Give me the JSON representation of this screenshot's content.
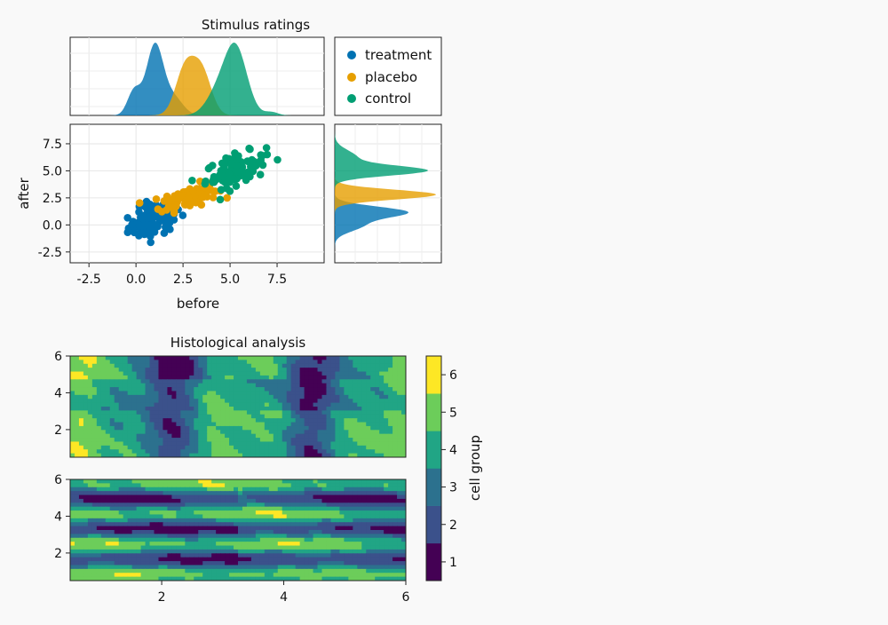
{
  "colors": {
    "treatment": "#0072b2",
    "placebo": "#e69f00",
    "control": "#009e73",
    "background": "#f9f9f9"
  },
  "chart_data": [
    {
      "id": "stimulus",
      "type": "scatter",
      "title": "Stimulus ratings",
      "xlabel": "before",
      "ylabel": "after",
      "xlim": [
        -3.5,
        10.0
      ],
      "ylim": [
        -3.5,
        9.3
      ],
      "xticks": [
        -2.5,
        0.0,
        2.5,
        5.0,
        7.5
      ],
      "xtick_labels": [
        "-2.5",
        "0.0",
        "2.5",
        "5.0",
        "7.5"
      ],
      "yticks": [
        -2.5,
        0.0,
        2.5,
        5.0,
        7.5
      ],
      "ytick_labels": [
        "-2.5",
        "0.0",
        "2.5",
        "5.0",
        "7.5"
      ],
      "grid": true,
      "legend_position": "top-right panel",
      "legend": [
        "treatment",
        "placebo",
        "control"
      ],
      "series": [
        {
          "name": "treatment",
          "center": [
            1.0,
            0.5
          ],
          "spread": [
            0.7,
            0.85
          ],
          "count": 100
        },
        {
          "name": "placebo",
          "center": [
            2.8,
            2.6
          ],
          "spread": [
            0.75,
            0.6
          ],
          "count": 100
        },
        {
          "name": "control",
          "center": [
            5.3,
            5.1
          ],
          "spread": [
            0.8,
            0.8
          ],
          "count": 100
        }
      ],
      "marginal_x_density": "peaks near 1.0 (treatment), 3.0 (placebo), 5.3 (control)",
      "marginal_y_density": "peaks near 1.2 (treatment), 2.8 (placebo), 5.0 (control)"
    },
    {
      "id": "histology",
      "type": "heatmap",
      "title": "Histological analysis",
      "panels": 2,
      "xlim": [
        0.5,
        6.0
      ],
      "ylim": [
        0.5,
        6.0
      ],
      "xticks": [
        2,
        4,
        6
      ],
      "xtick_labels": [
        "2",
        "4",
        "6"
      ],
      "yticks": [
        2,
        4,
        6
      ],
      "ytick_labels": [
        "2",
        "4",
        "6"
      ],
      "levels": [
        1,
        2,
        3,
        4,
        5,
        6
      ],
      "colorbar_label": "cell group",
      "colorbar_ticks": [
        "1",
        "2",
        "3",
        "4",
        "5",
        "6"
      ],
      "palette": [
        "#440154",
        "#3b518b",
        "#2c718e",
        "#21a585",
        "#6ccd5a",
        "#fde725"
      ]
    }
  ]
}
